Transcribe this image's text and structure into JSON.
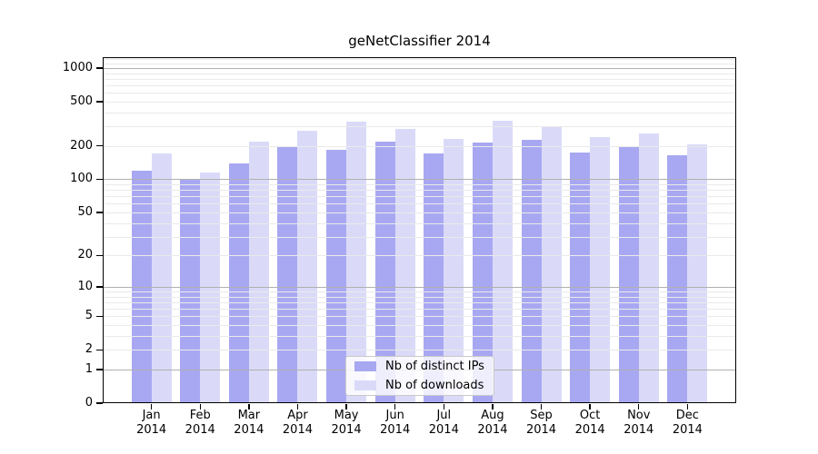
{
  "chart_data": {
    "type": "bar",
    "title": "geNetClassifier 2014",
    "categories": [
      "Jan",
      "Feb",
      "Mar",
      "Apr",
      "May",
      "Jun",
      "Jul",
      "Aug",
      "Sep",
      "Oct",
      "Nov",
      "Dec"
    ],
    "x_tick_second_line": "2014",
    "series": [
      {
        "name": "Nb of distinct IPs",
        "color": "#a8a8f2",
        "values": [
          120,
          100,
          140,
          195,
          185,
          220,
          170,
          215,
          225,
          175,
          195,
          165
        ]
      },
      {
        "name": "Nb of downloads",
        "color": "#dadaf8",
        "values": [
          170,
          115,
          220,
          275,
          330,
          285,
          230,
          335,
          300,
          240,
          260,
          205
        ]
      }
    ],
    "yaxis": {
      "scale": "log10(1+x)",
      "ticks": [
        0,
        1,
        2,
        5,
        10,
        20,
        50,
        100,
        200,
        500,
        1000
      ],
      "major_gridlines": [
        1,
        10,
        100,
        1000
      ],
      "minor_gridlines": [
        2,
        3,
        4,
        5,
        6,
        7,
        8,
        9,
        20,
        30,
        40,
        50,
        60,
        70,
        80,
        90,
        200,
        300,
        400,
        500,
        600,
        700,
        800,
        900,
        1100,
        1200
      ],
      "range": [
        0,
        1250
      ]
    },
    "xlabel": "",
    "ylabel": "",
    "grid": "horizontal, drawn over bars",
    "legend": {
      "position": "inside-bottom-center",
      "labels": [
        "Nb of distinct IPs",
        "Nb of downloads"
      ]
    },
    "colors": {
      "background": "#ffffff",
      "axis": "#000000",
      "grid_major": "#b0b0b0",
      "grid_minor": "#eaeaea",
      "legend_border": "#c9c9c9"
    }
  }
}
